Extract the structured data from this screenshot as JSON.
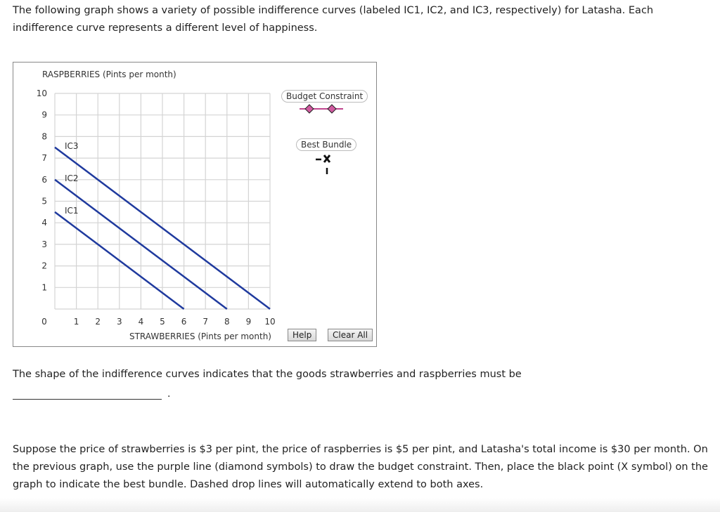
{
  "intro_text": "The following graph shows a variety of possible indifference curves (labeled IC1, IC2, and IC3, respectively) for Latasha. Each indifference curve represents a different level of happiness.",
  "graph": {
    "y_axis_label": "RASPBERRIES (Pints per month)",
    "x_axis_label": "STRAWBERRIES (Pints per month)",
    "legend": {
      "budget_constraint": "Budget Constraint",
      "best_bundle": "Best Bundle"
    },
    "buttons": {
      "help": "Help",
      "clear_all": "Clear All"
    },
    "colors": {
      "curve": "#1f3a9e",
      "budget_line": "#c0468f",
      "budget_marker": "#d05aa0",
      "grid": "#d4d4d4"
    }
  },
  "chart_data": {
    "type": "line",
    "title": "",
    "xlabel": "STRAWBERRIES (Pints per month)",
    "ylabel": "RASPBERRIES (Pints per month)",
    "xlim": [
      0,
      10
    ],
    "ylim": [
      0,
      10
    ],
    "x_ticks": [
      0,
      1,
      2,
      3,
      4,
      5,
      6,
      7,
      8,
      9,
      10
    ],
    "y_ticks": [
      0,
      1,
      2,
      3,
      4,
      5,
      6,
      7,
      8,
      9,
      10
    ],
    "grid": true,
    "series": [
      {
        "name": "IC1",
        "x": [
          0,
          6
        ],
        "y": [
          4.5,
          0
        ]
      },
      {
        "name": "IC2",
        "x": [
          0,
          8
        ],
        "y": [
          6,
          0
        ]
      },
      {
        "name": "IC3",
        "x": [
          0,
          10
        ],
        "y": [
          7.5,
          0
        ]
      }
    ],
    "legend": [
      "Budget Constraint",
      "Best Bundle"
    ]
  },
  "question_text": "The shape of the indifference curves indicates that the goods strawberries and raspberries must be",
  "answer_blank": "",
  "blank_suffix": ".",
  "instructions_text": "Suppose the price of strawberries is $3 per pint, the price of raspberries is $5 per pint, and Latasha's total income is $30 per month. On the previous graph, use the purple line (diamond symbols) to draw the budget constraint. Then, place the black point (X symbol) on the graph to indicate the best bundle. Dashed drop lines will automatically extend to both axes."
}
